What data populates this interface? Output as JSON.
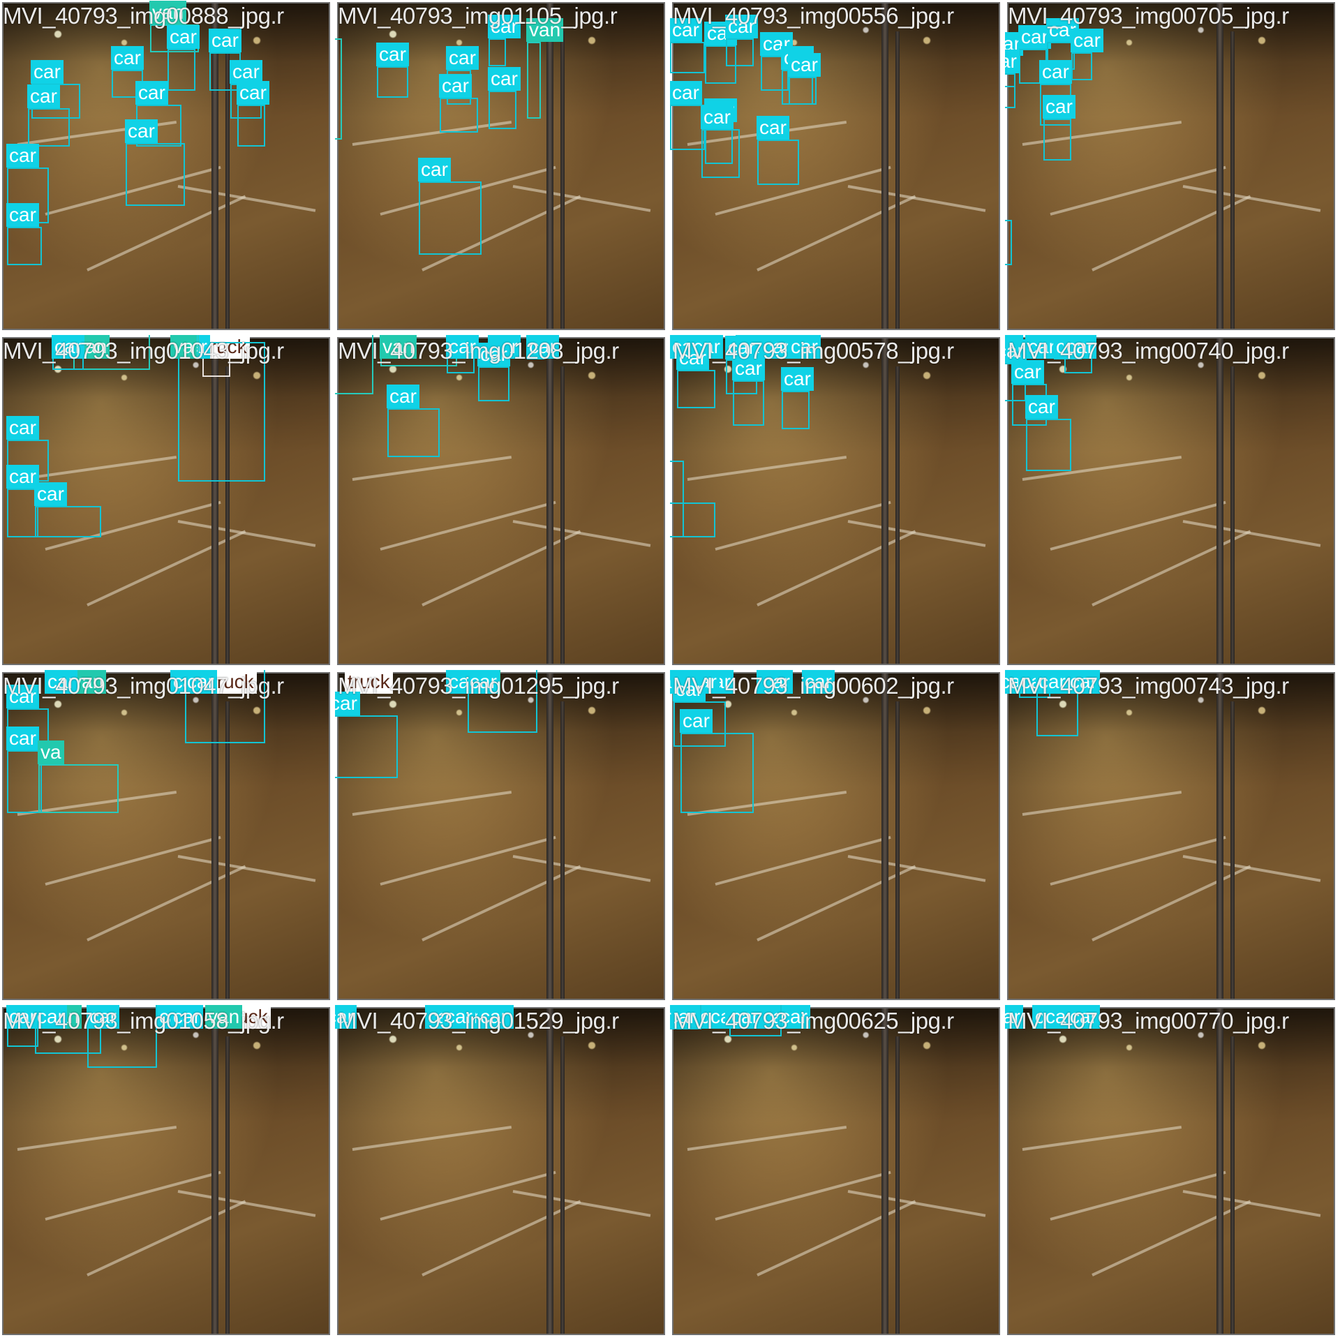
{
  "colors": {
    "car": "#10d2e6",
    "van": "#22c9ae",
    "truck": "#ffffff"
  },
  "tiles": [
    {
      "title": "MVI_40793_img00888_jpg.r",
      "labels": [
        "van",
        "car",
        "car",
        "car",
        "car",
        "car",
        "car",
        "car",
        "car",
        "car",
        "car",
        "car"
      ]
    },
    {
      "title": "MVI_40793_img01105_jpg.r",
      "labels": [
        "van",
        "van",
        "car",
        "car",
        "car",
        "car",
        "car",
        "car",
        "car"
      ]
    },
    {
      "title": "MVI_40793_img00556_jpg.r",
      "labels": [
        "car",
        "car",
        "car",
        "car",
        "car",
        "car",
        "car",
        "car",
        "car",
        "car",
        "car",
        "car",
        "car",
        "car",
        "car"
      ]
    },
    {
      "title": "MVI_40793_img00705_jpg.r",
      "labels": [
        "car",
        "car",
        "car",
        "car",
        "car",
        "car",
        "car",
        "car",
        "car",
        "car",
        "car",
        "car",
        "car",
        "car",
        "car",
        "car",
        "car"
      ]
    },
    {
      "title": "MVI_40793_img01043_jpg.r",
      "labels": [
        "van",
        "car",
        "car",
        "truck",
        "car",
        "car",
        "car",
        "car",
        "va"
      ]
    },
    {
      "title": "MVI_40793_img01208_jpg.r",
      "labels": [
        "van",
        "van",
        "car",
        "car",
        "car",
        "car",
        "car",
        "car"
      ]
    },
    {
      "title": "MVI_40793_img00578_jpg.r",
      "labels": [
        "car",
        "car",
        "car",
        "car",
        "car",
        "car",
        "car",
        "car",
        "car",
        "car",
        "car",
        "car",
        "car",
        "car",
        "car",
        "car"
      ]
    },
    {
      "title": "MVI_40793_img00740_jpg.r",
      "labels": [
        "car",
        "car",
        "car",
        "car",
        "car",
        "car",
        "car",
        "car",
        "car",
        "car",
        "car",
        "car",
        "car",
        "car"
      ]
    },
    {
      "title": "MVI_40793_img01047_jpg.r",
      "labels": [
        "van",
        "car",
        "car",
        "truck",
        "car",
        "car",
        "car",
        "va"
      ]
    },
    {
      "title": "MVI_40793_img01295_jpg.r",
      "labels": [
        "truck",
        "van",
        "van",
        "van",
        "car",
        "car",
        "car",
        "car"
      ]
    },
    {
      "title": "MVI_40793_img00602_jpg.r",
      "labels": [
        "car",
        "car",
        "car",
        "car",
        "car",
        "car",
        "car",
        "car",
        "car",
        "car",
        "car",
        "car",
        "car",
        "car"
      ]
    },
    {
      "title": "MVI_40793_img00743_jpg.r",
      "labels": [
        "car",
        "car",
        "car",
        "car",
        "car",
        "car",
        "car",
        "car",
        "car",
        "car",
        "car",
        "car",
        "car",
        "car"
      ]
    },
    {
      "title": "MVI_40793_img01058_jpg.r",
      "labels": [
        "van",
        "car",
        "car",
        "car",
        "truck",
        "van",
        "car",
        "car",
        "car"
      ]
    },
    {
      "title": "MVI_40793_img01529_jpg.r",
      "labels": [
        "car",
        "car",
        "car",
        "car",
        "car",
        "car",
        "car",
        "car"
      ]
    },
    {
      "title": "MVI_40793_img00625_jpg.r",
      "labels": [
        "car",
        "car",
        "car",
        "car",
        "car",
        "car",
        "car",
        "car",
        "car",
        "car",
        "car",
        "car",
        "car",
        "car",
        "car",
        "car"
      ]
    },
    {
      "title": "MVI_40793_img00770_jpg.r",
      "labels": [
        "car",
        "car",
        "car",
        "car",
        "car",
        "car",
        "car",
        "car",
        "car",
        "car",
        "car",
        "car",
        "car",
        "car",
        "car",
        "car",
        "car"
      ]
    }
  ]
}
